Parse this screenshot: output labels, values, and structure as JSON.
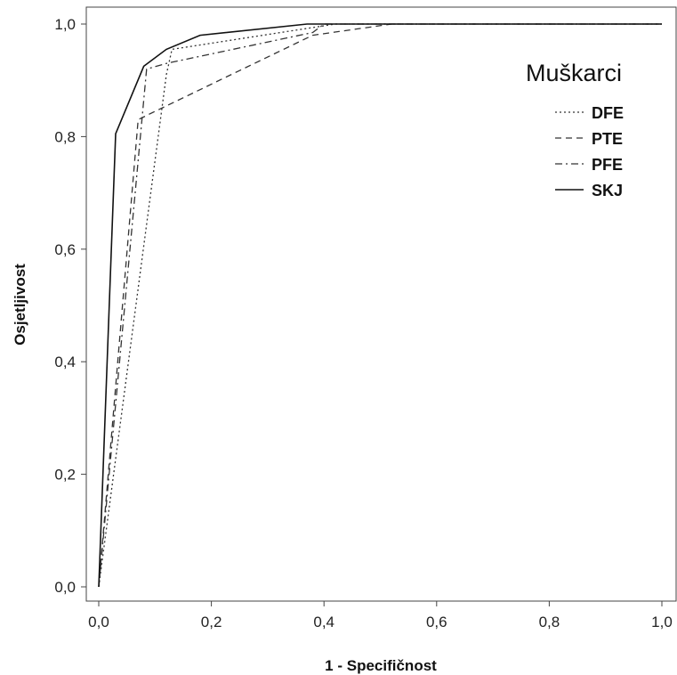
{
  "chart_data": {
    "type": "line",
    "xlabel": "1 - Specifičnost",
    "ylabel": "Osjetljivost",
    "xlim": [
      0,
      1
    ],
    "ylim": [
      0,
      1
    ],
    "x_ticks": [
      "0,0",
      "0,2",
      "0,4",
      "0,6",
      "0,8",
      "1,0"
    ],
    "y_ticks": [
      "0,0",
      "0,2",
      "0,4",
      "0,6",
      "0,8",
      "1,0"
    ],
    "grid": false,
    "legend": {
      "title": "Muškarci",
      "placement": "top-right"
    },
    "series": [
      {
        "name": "DFE",
        "style": "dotted",
        "color": "#333333",
        "x": [
          0.0,
          0.12,
          0.13,
          0.42,
          1.0
        ],
        "y": [
          0.0,
          0.91,
          0.955,
          1.0,
          1.0
        ]
      },
      {
        "name": "PTE",
        "style": "dashed",
        "color": "#333333",
        "x": [
          0.0,
          0.07,
          0.09,
          0.38,
          0.52,
          1.0
        ],
        "y": [
          0.0,
          0.83,
          0.84,
          0.98,
          1.0,
          1.0
        ]
      },
      {
        "name": "PFE",
        "style": "dashdot",
        "color": "#333333",
        "x": [
          0.0,
          0.085,
          0.12,
          0.38,
          0.4,
          1.0
        ],
        "y": [
          0.0,
          0.92,
          0.93,
          0.985,
          1.0,
          1.0
        ]
      },
      {
        "name": "SKJ",
        "style": "solid",
        "color": "#111111",
        "x": [
          0.0,
          0.03,
          0.08,
          0.12,
          0.18,
          0.37,
          1.0
        ],
        "y": [
          0.0,
          0.805,
          0.925,
          0.955,
          0.98,
          1.0,
          1.0
        ]
      }
    ]
  }
}
